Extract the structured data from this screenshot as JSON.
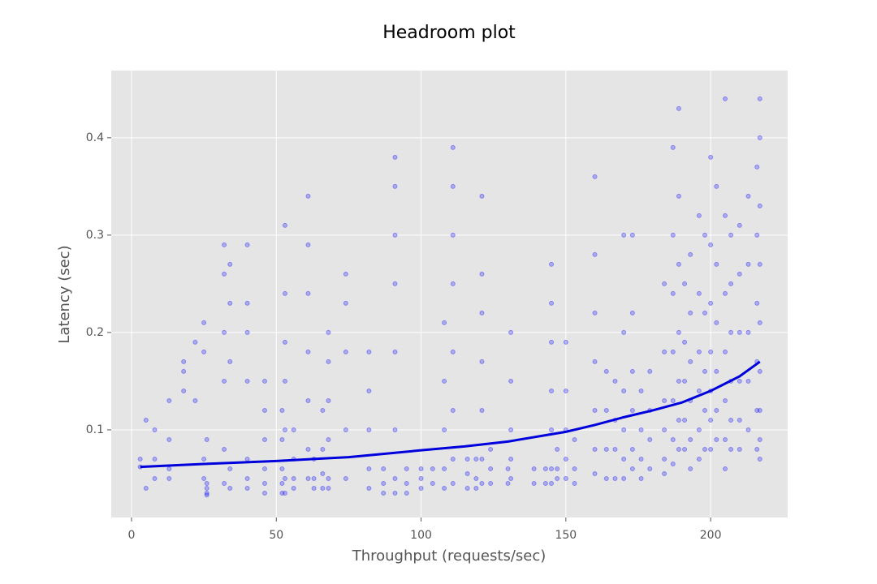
{
  "chart_data": {
    "type": "scatter",
    "title": "Headroom plot",
    "x_label": "Throughput (requests/sec)",
    "y_label": "Latency (sec)",
    "xlim": [
      -7,
      226.6
    ],
    "ylim": [
      0.01,
      0.469
    ],
    "xticks": [
      0,
      50,
      100,
      150,
      200
    ],
    "yticks": [
      0.1,
      0.2,
      0.3,
      0.4
    ],
    "grid": true,
    "series": [
      {
        "kind": "points",
        "color": "#0000ff",
        "x": [
          3,
          3,
          5,
          5,
          8,
          8,
          8,
          13,
          13,
          13,
          13,
          18,
          18,
          18,
          22,
          22,
          25,
          25,
          25,
          25,
          26,
          26,
          26,
          26,
          26,
          32,
          32,
          32,
          32,
          32,
          32,
          34,
          34,
          34,
          34,
          34,
          40,
          40,
          40,
          40,
          40,
          40,
          40,
          46,
          46,
          46,
          46,
          46,
          46,
          52,
          52,
          52,
          52,
          52,
          53,
          53,
          53,
          53,
          53,
          53,
          53,
          56,
          56,
          56,
          56,
          61,
          61,
          61,
          61,
          61,
          61,
          61,
          63,
          63,
          63,
          66,
          66,
          66,
          66,
          68,
          68,
          68,
          68,
          68,
          68,
          74,
          74,
          74,
          74,
          74,
          82,
          82,
          82,
          82,
          82,
          87,
          87,
          87,
          91,
          91,
          91,
          91,
          91,
          91,
          91,
          91,
          95,
          95,
          95,
          100,
          100,
          100,
          104,
          104,
          108,
          108,
          108,
          108,
          108,
          111,
          111,
          111,
          111,
          111,
          111,
          111,
          111,
          116,
          116,
          116,
          119,
          119,
          119,
          121,
          121,
          121,
          121,
          121,
          121,
          121,
          124,
          124,
          124,
          130,
          130,
          131,
          131,
          131,
          131,
          131,
          139,
          139,
          143,
          143,
          145,
          145,
          145,
          145,
          145,
          145,
          145,
          147,
          147,
          147,
          150,
          150,
          150,
          150,
          150,
          153,
          153,
          153,
          160,
          160,
          160,
          160,
          160,
          160,
          160,
          164,
          164,
          164,
          164,
          167,
          167,
          167,
          167,
          170,
          170,
          170,
          170,
          170,
          170,
          173,
          173,
          173,
          173,
          173,
          173,
          176,
          176,
          176,
          176,
          179,
          179,
          179,
          179,
          184,
          184,
          184,
          184,
          184,
          184,
          187,
          187,
          187,
          187,
          187,
          187,
          187,
          189,
          189,
          189,
          189,
          189,
          189,
          189,
          191,
          191,
          191,
          191,
          191,
          193,
          193,
          193,
          193,
          193,
          193,
          196,
          196,
          196,
          196,
          196,
          196,
          198,
          198,
          198,
          198,
          198,
          200,
          200,
          200,
          200,
          200,
          200,
          200,
          202,
          202,
          202,
          202,
          202,
          202,
          205,
          205,
          205,
          205,
          205,
          205,
          205,
          207,
          207,
          207,
          207,
          207,
          207,
          210,
          210,
          210,
          210,
          210,
          210,
          213,
          213,
          213,
          213,
          213,
          216,
          216,
          216,
          216,
          216,
          216,
          217,
          217,
          217,
          217,
          217,
          217,
          217,
          217,
          217
        ],
        "values": [
          0.07,
          0.062,
          0.11,
          0.04,
          0.1,
          0.07,
          0.05,
          0.13,
          0.09,
          0.06,
          0.05,
          0.17,
          0.16,
          0.14,
          0.19,
          0.13,
          0.21,
          0.18,
          0.07,
          0.05,
          0.09,
          0.045,
          0.04,
          0.035,
          0.033,
          0.29,
          0.26,
          0.2,
          0.15,
          0.08,
          0.045,
          0.27,
          0.23,
          0.17,
          0.06,
          0.04,
          0.29,
          0.23,
          0.2,
          0.15,
          0.07,
          0.05,
          0.04,
          0.15,
          0.12,
          0.09,
          0.06,
          0.045,
          0.035,
          0.12,
          0.09,
          0.06,
          0.045,
          0.035,
          0.31,
          0.24,
          0.19,
          0.15,
          0.1,
          0.05,
          0.035,
          0.1,
          0.07,
          0.05,
          0.04,
          0.34,
          0.29,
          0.24,
          0.18,
          0.13,
          0.08,
          0.05,
          0.07,
          0.05,
          0.04,
          0.12,
          0.08,
          0.055,
          0.04,
          0.2,
          0.17,
          0.13,
          0.09,
          0.05,
          0.04,
          0.26,
          0.23,
          0.18,
          0.1,
          0.05,
          0.18,
          0.14,
          0.1,
          0.06,
          0.04,
          0.06,
          0.045,
          0.035,
          0.38,
          0.35,
          0.3,
          0.25,
          0.18,
          0.1,
          0.05,
          0.035,
          0.06,
          0.045,
          0.035,
          0.06,
          0.05,
          0.04,
          0.06,
          0.045,
          0.21,
          0.15,
          0.1,
          0.06,
          0.04,
          0.39,
          0.35,
          0.3,
          0.25,
          0.18,
          0.12,
          0.07,
          0.045,
          0.07,
          0.055,
          0.04,
          0.07,
          0.05,
          0.04,
          0.34,
          0.26,
          0.22,
          0.17,
          0.12,
          0.07,
          0.045,
          0.08,
          0.06,
          0.045,
          0.06,
          0.045,
          0.2,
          0.15,
          0.1,
          0.07,
          0.05,
          0.06,
          0.045,
          0.06,
          0.045,
          0.27,
          0.23,
          0.19,
          0.14,
          0.1,
          0.06,
          0.045,
          0.08,
          0.06,
          0.05,
          0.19,
          0.14,
          0.1,
          0.07,
          0.05,
          0.09,
          0.06,
          0.045,
          0.36,
          0.28,
          0.22,
          0.17,
          0.12,
          0.08,
          0.055,
          0.16,
          0.12,
          0.08,
          0.05,
          0.15,
          0.11,
          0.08,
          0.05,
          0.3,
          0.2,
          0.14,
          0.1,
          0.07,
          0.05,
          0.3,
          0.22,
          0.16,
          0.12,
          0.08,
          0.06,
          0.14,
          0.1,
          0.07,
          0.05,
          0.16,
          0.12,
          0.09,
          0.06,
          0.25,
          0.18,
          0.13,
          0.1,
          0.07,
          0.055,
          0.39,
          0.3,
          0.24,
          0.18,
          0.13,
          0.09,
          0.065,
          0.43,
          0.34,
          0.27,
          0.2,
          0.15,
          0.11,
          0.08,
          0.25,
          0.19,
          0.15,
          0.11,
          0.08,
          0.28,
          0.22,
          0.17,
          0.13,
          0.09,
          0.06,
          0.32,
          0.24,
          0.18,
          0.14,
          0.1,
          0.07,
          0.3,
          0.22,
          0.16,
          0.12,
          0.08,
          0.38,
          0.29,
          0.23,
          0.18,
          0.14,
          0.11,
          0.08,
          0.35,
          0.27,
          0.21,
          0.16,
          0.12,
          0.09,
          0.44,
          0.32,
          0.24,
          0.18,
          0.13,
          0.09,
          0.06,
          0.3,
          0.25,
          0.2,
          0.15,
          0.11,
          0.08,
          0.31,
          0.26,
          0.2,
          0.15,
          0.11,
          0.08,
          0.34,
          0.27,
          0.2,
          0.15,
          0.1,
          0.37,
          0.3,
          0.23,
          0.17,
          0.12,
          0.08,
          0.44,
          0.4,
          0.33,
          0.27,
          0.21,
          0.16,
          0.12,
          0.09,
          0.07
        ]
      },
      {
        "kind": "line",
        "color": "#0000dd",
        "x": [
          3,
          25,
          50,
          75,
          100,
          115,
          130,
          150,
          160,
          170,
          180,
          190,
          200,
          210,
          217
        ],
        "values": [
          0.062,
          0.065,
          0.068,
          0.072,
          0.079,
          0.083,
          0.088,
          0.098,
          0.105,
          0.113,
          0.12,
          0.128,
          0.14,
          0.155,
          0.17
        ]
      }
    ]
  }
}
